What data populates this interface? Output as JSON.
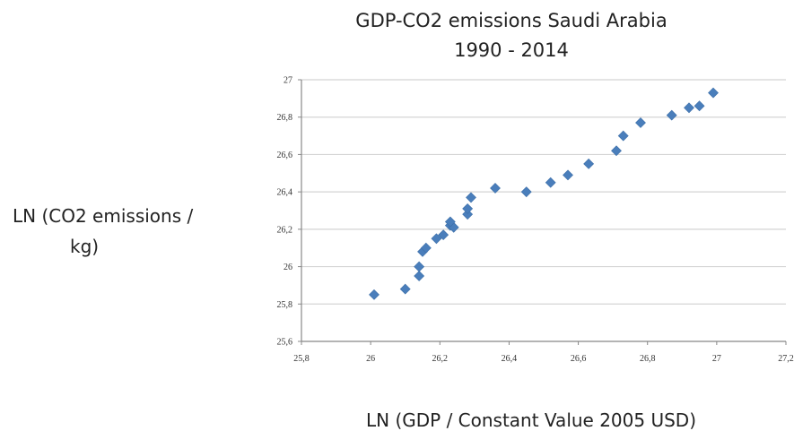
{
  "chart_data": {
    "type": "scatter",
    "title": "GDP-CO2 emissions Saudi Arabia",
    "subtitle": "1990 - 2014",
    "xlabel": "LN (GDP / Constant Value 2005 USD)",
    "ylabel_lines": [
      "LN (CO2 emissions /",
      "kg)"
    ],
    "xlim": [
      25.8,
      27.2
    ],
    "ylim": [
      25.6,
      27.0
    ],
    "x_ticks": [
      25.8,
      26.0,
      26.2,
      26.4,
      26.6,
      26.8,
      27.0,
      27.2
    ],
    "y_ticks": [
      25.6,
      25.8,
      26.0,
      26.2,
      26.4,
      26.6,
      26.8,
      27.0
    ],
    "x_tick_labels": [
      "25,8",
      "26",
      "26,2",
      "26,4",
      "26,6",
      "26,8",
      "27",
      "27,2"
    ],
    "y_tick_labels": [
      "25,6",
      "25,8",
      "26",
      "26,2",
      "26,4",
      "26,6",
      "26,8",
      "27"
    ],
    "grid": "horizontal",
    "marker": "diamond",
    "marker_color": "#4a7ebb",
    "points": [
      [
        26.01,
        25.85
      ],
      [
        26.1,
        25.88
      ],
      [
        26.14,
        25.95
      ],
      [
        26.14,
        26.0
      ],
      [
        26.15,
        26.08
      ],
      [
        26.16,
        26.1
      ],
      [
        26.19,
        26.15
      ],
      [
        26.21,
        26.17
      ],
      [
        26.23,
        26.22
      ],
      [
        26.24,
        26.21
      ],
      [
        26.23,
        26.24
      ],
      [
        26.28,
        26.28
      ],
      [
        26.28,
        26.31
      ],
      [
        26.29,
        26.37
      ],
      [
        26.36,
        26.42
      ],
      [
        26.45,
        26.4
      ],
      [
        26.52,
        26.45
      ],
      [
        26.57,
        26.49
      ],
      [
        26.63,
        26.55
      ],
      [
        26.71,
        26.62
      ],
      [
        26.73,
        26.7
      ],
      [
        26.78,
        26.77
      ],
      [
        26.87,
        26.81
      ],
      [
        26.92,
        26.85
      ],
      [
        26.95,
        26.86
      ],
      [
        26.99,
        26.93
      ]
    ]
  }
}
